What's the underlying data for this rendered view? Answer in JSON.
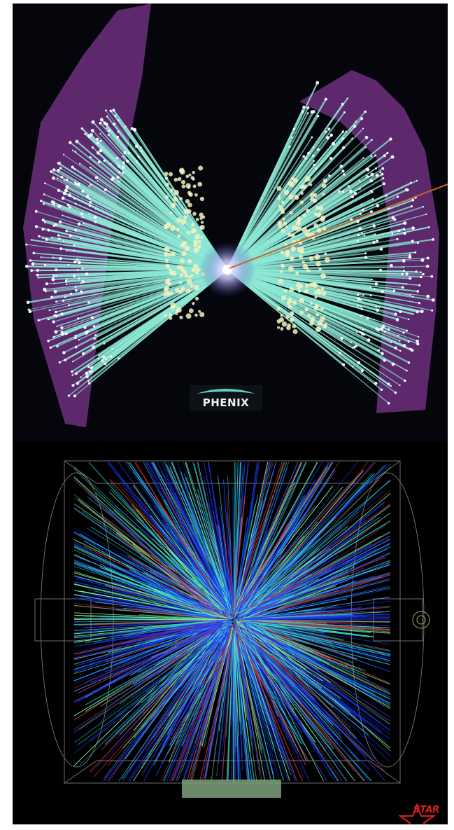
{
  "phenix": {
    "logo_text": "PHENIX",
    "colors": {
      "track": "#8de8d6",
      "frame": "#7a3a8c",
      "hits": "#f4f0c0",
      "background": "#05060c"
    }
  },
  "star": {
    "logo_text": "STAR",
    "colors": {
      "blue": "#1f3cff",
      "cyan": "#24d7e8",
      "green": "#8aff8a",
      "red": "#e0362c",
      "logo": "#d8231f"
    }
  }
}
